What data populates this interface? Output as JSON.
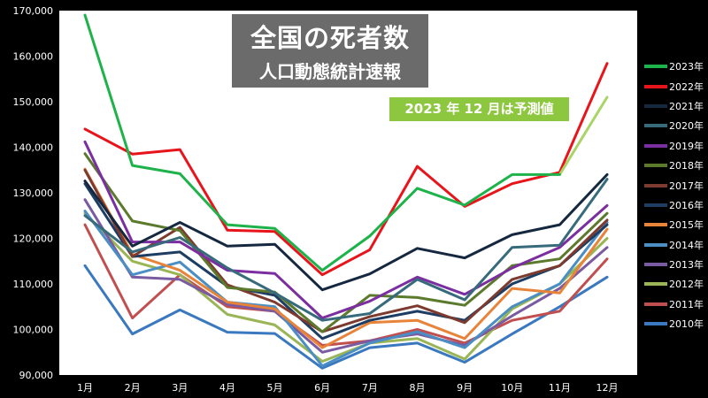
{
  "chart_data": {
    "type": "line",
    "title": "全国の死者数",
    "subtitle": "人口動態統計速報",
    "annotation": "2023 年 12 月は予測値",
    "categories": [
      "1月",
      "2月",
      "3月",
      "4月",
      "5月",
      "6月",
      "7月",
      "8月",
      "9月",
      "10月",
      "11月",
      "12月"
    ],
    "ylim": [
      90000,
      170000
    ],
    "yticks": [
      90000,
      100000,
      110000,
      120000,
      130000,
      140000,
      150000,
      160000,
      170000
    ],
    "ytick_labels": [
      "90,000",
      "100,000",
      "110,000",
      "120,000",
      "130,000",
      "140,000",
      "150,000",
      "160,000",
      "170,000"
    ],
    "grid": false,
    "legend_position": "right",
    "series": [
      {
        "name": "2023年",
        "color": "#1db34a",
        "values": [
          169000,
          136000,
          134200,
          123000,
          122200,
          113000,
          120500,
          131000,
          127300,
          134000,
          134000,
          null
        ]
      },
      {
        "name": "2023年 12月 予測値",
        "color": "#a8d468",
        "values": [
          null,
          null,
          null,
          null,
          null,
          null,
          null,
          null,
          null,
          null,
          134000,
          151000
        ]
      },
      {
        "name": "2022年",
        "color": "#e8141b",
        "values": [
          144000,
          138500,
          139500,
          121800,
          121500,
          112000,
          117500,
          135800,
          127000,
          132000,
          134500,
          158400
        ]
      },
      {
        "name": "2021年",
        "color": "#152840",
        "values": [
          132600,
          118300,
          123500,
          118300,
          118700,
          108700,
          112200,
          117800,
          115700,
          120800,
          123000,
          134000
        ]
      },
      {
        "name": "2020年",
        "color": "#376b7c",
        "values": [
          125000,
          117000,
          120200,
          113500,
          108000,
          102000,
          103500,
          111000,
          106500,
          118000,
          118500,
          133000
        ]
      },
      {
        "name": "2019年",
        "color": "#7b2ea0",
        "values": [
          141200,
          119200,
          119200,
          113000,
          112300,
          102500,
          106200,
          111500,
          107700,
          113500,
          118000,
          127200
        ]
      },
      {
        "name": "2018年",
        "color": "#5c7a2c",
        "values": [
          138600,
          123800,
          121700,
          109200,
          108200,
          99500,
          107500,
          107000,
          105300,
          114000,
          115500,
          125500
        ]
      },
      {
        "name": "2017年",
        "color": "#7d3a2e",
        "values": [
          135000,
          116000,
          122400,
          109800,
          106000,
          99500,
          102800,
          105200,
          101500,
          111000,
          114000,
          124000
        ]
      },
      {
        "name": "2016年",
        "color": "#1d3d62",
        "values": [
          132000,
          116000,
          117000,
          109500,
          107500,
          98000,
          102000,
          104000,
          102000,
          110000,
          114000,
          123000
        ]
      },
      {
        "name": "2015年",
        "color": "#e8843a",
        "values": [
          135200,
          116500,
          113000,
          106000,
          104500,
          96000,
          101500,
          102000,
          98000,
          109000,
          108000,
          122000
        ]
      },
      {
        "name": "2014年",
        "color": "#4a8ec4",
        "values": [
          126000,
          112000,
          114800,
          106000,
          105000,
          92000,
          97000,
          99500,
          96000,
          105000,
          110000,
          123500
        ]
      },
      {
        "name": "2013年",
        "color": "#7a5aa0",
        "values": [
          128500,
          111500,
          111000,
          105500,
          104000,
          95000,
          97500,
          99000,
          96500,
          103000,
          109000,
          118000
        ]
      },
      {
        "name": "2012年",
        "color": "#9ab555",
        "values": [
          125500,
          115000,
          112000,
          103300,
          101000,
          93000,
          97000,
          98000,
          93500,
          104500,
          110000,
          120000
        ]
      },
      {
        "name": "2011年",
        "color": "#c05050",
        "values": [
          123000,
          102500,
          112000,
          105000,
          104000,
          96500,
          97500,
          100000,
          97000,
          102000,
          104000,
          115500
        ]
      },
      {
        "name": "2010年",
        "color": "#3a78c0",
        "values": [
          114000,
          99000,
          104300,
          99400,
          99100,
          91500,
          96000,
          97000,
          92800,
          99000,
          105000,
          111500
        ]
      }
    ],
    "legend": [
      {
        "name": "2023年",
        "color": "#1db34a"
      },
      {
        "name": "2022年",
        "color": "#e8141b"
      },
      {
        "name": "2021年",
        "color": "#152840"
      },
      {
        "name": "2020年",
        "color": "#376b7c"
      },
      {
        "name": "2019年",
        "color": "#7b2ea0"
      },
      {
        "name": "2018年",
        "color": "#5c7a2c"
      },
      {
        "name": "2017年",
        "color": "#7d3a2e"
      },
      {
        "name": "2016年",
        "color": "#1d3d62"
      },
      {
        "name": "2015年",
        "color": "#e8843a"
      },
      {
        "name": "2014年",
        "color": "#4a8ec4"
      },
      {
        "name": "2013年",
        "color": "#7a5aa0"
      },
      {
        "name": "2012年",
        "color": "#9ab555"
      },
      {
        "name": "2011年",
        "color": "#c05050"
      },
      {
        "name": "2010年",
        "color": "#3a78c0"
      }
    ]
  }
}
